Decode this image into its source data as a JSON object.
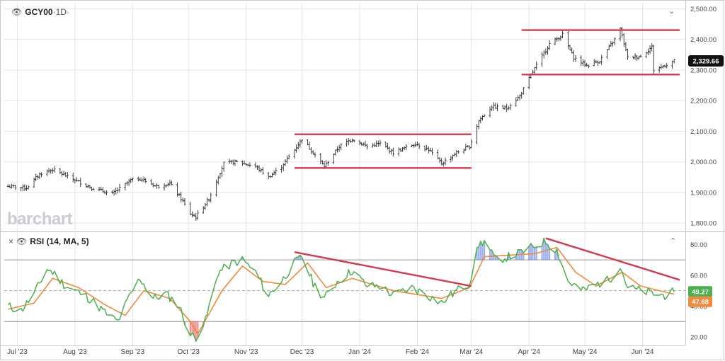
{
  "symbol": "GCY00",
  "interval": "1D",
  "watermark": "barchart",
  "rsi_label": "RSI (14, MA, 5)",
  "colors": {
    "price_bar": "#2b2b2b",
    "rsi_line": "#4caf50",
    "rsi_ma_line": "#f08a3c",
    "overbought_fill": "#4a6fdc",
    "oversold_fill": "#e04646",
    "trend_line": "#d23a4e",
    "last_price_badge": "#111111",
    "rsi_badge": "#4caf50",
    "ma_badge": "#f08a3c"
  },
  "chart_data": [
    {
      "type": "ohlc",
      "name": "price",
      "x_ticks": [
        "Jul '23",
        "Aug '23",
        "Sep '23",
        "Oct '23",
        "Nov '23",
        "Dec '23",
        "Jan '24",
        "Feb '24",
        "Mar '24",
        "Apr '24",
        "May '24",
        "Jun '24"
      ],
      "y_ticks": [
        "1,800.00",
        "1,900.00",
        "2,000.00",
        "2,100.00",
        "2,200.00",
        "2,300.00",
        "2,400.00",
        "2,500.00"
      ],
      "ylim": [
        1775,
        2510
      ],
      "last_price": "2,329.66",
      "close_points": [
        [
          "2023-06-26",
          1920
        ],
        [
          "2023-07-06",
          1915
        ],
        [
          "2023-07-13",
          1960
        ],
        [
          "2023-07-20",
          1975
        ],
        [
          "2023-07-27",
          1955
        ],
        [
          "2023-08-03",
          1935
        ],
        [
          "2023-08-10",
          1915
        ],
        [
          "2023-08-21",
          1895
        ],
        [
          "2023-08-31",
          1940
        ],
        [
          "2023-09-05",
          1945
        ],
        [
          "2023-09-14",
          1920
        ],
        [
          "2023-09-21",
          1930
        ],
        [
          "2023-09-27",
          1880
        ],
        [
          "2023-10-02",
          1830
        ],
        [
          "2023-10-05",
          1820
        ],
        [
          "2023-10-12",
          1880
        ],
        [
          "2023-10-20",
          1995
        ],
        [
          "2023-10-27",
          2000
        ],
        [
          "2023-11-06",
          1985
        ],
        [
          "2023-11-13",
          1950
        ],
        [
          "2023-11-20",
          1985
        ],
        [
          "2023-11-27",
          2040
        ],
        [
          "2023-12-01",
          2075
        ],
        [
          "2023-12-07",
          2030
        ],
        [
          "2023-12-13",
          1985
        ],
        [
          "2023-12-21",
          2050
        ],
        [
          "2023-12-28",
          2075
        ],
        [
          "2024-01-05",
          2050
        ],
        [
          "2024-01-12",
          2060
        ],
        [
          "2024-01-19",
          2030
        ],
        [
          "2024-01-31",
          2060
        ],
        [
          "2024-02-07",
          2040
        ],
        [
          "2024-02-14",
          1995
        ],
        [
          "2024-02-22",
          2030
        ],
        [
          "2024-02-29",
          2050
        ],
        [
          "2024-03-05",
          2135
        ],
        [
          "2024-03-12",
          2180
        ],
        [
          "2024-03-20",
          2175
        ],
        [
          "2024-03-27",
          2215
        ],
        [
          "2024-04-04",
          2305
        ],
        [
          "2024-04-12",
          2385
        ],
        [
          "2024-04-19",
          2415
        ],
        [
          "2024-04-25",
          2340
        ],
        [
          "2024-05-02",
          2315
        ],
        [
          "2024-05-09",
          2330
        ],
        [
          "2024-05-17",
          2400
        ],
        [
          "2024-05-20",
          2435
        ],
        [
          "2024-05-24",
          2340
        ],
        [
          "2024-05-31",
          2345
        ],
        [
          "2024-06-06",
          2375
        ],
        [
          "2024-06-07",
          2300
        ],
        [
          "2024-06-13",
          2315
        ],
        [
          "2024-06-18",
          2330
        ]
      ],
      "support_resistance": [
        {
          "from": "2023-11-27",
          "to": "2024-03-01",
          "y": 2090
        },
        {
          "from": "2023-11-27",
          "to": "2024-03-01",
          "y": 1980
        },
        {
          "from": "2024-03-28",
          "to": "2024-06-21",
          "y": 2430
        },
        {
          "from": "2024-03-28",
          "to": "2024-06-21",
          "y": 2285
        }
      ]
    },
    {
      "type": "line",
      "name": "RSI (14, MA, 5)",
      "y_ticks": [
        "20.00",
        "40.00",
        "60.00",
        "80.00"
      ],
      "ylim": [
        15,
        87
      ],
      "overbought": 70,
      "oversold": 30,
      "midline": 50,
      "last_rsi": "49.27",
      "last_ma": "47.68",
      "rsi_points": [
        [
          "2023-06-26",
          40
        ],
        [
          "2023-07-03",
          37
        ],
        [
          "2023-07-10",
          48
        ],
        [
          "2023-07-17",
          64
        ],
        [
          "2023-07-20",
          62
        ],
        [
          "2023-07-27",
          53
        ],
        [
          "2023-08-03",
          49
        ],
        [
          "2023-08-10",
          44
        ],
        [
          "2023-08-17",
          36
        ],
        [
          "2023-08-24",
          30
        ],
        [
          "2023-08-31",
          48
        ],
        [
          "2023-09-05",
          58
        ],
        [
          "2023-09-12",
          45
        ],
        [
          "2023-09-19",
          48
        ],
        [
          "2023-09-26",
          40
        ],
        [
          "2023-10-02",
          21
        ],
        [
          "2023-10-05",
          20
        ],
        [
          "2023-10-10",
          30
        ],
        [
          "2023-10-17",
          62
        ],
        [
          "2023-10-25",
          68
        ],
        [
          "2023-10-30",
          70
        ],
        [
          "2023-11-06",
          62
        ],
        [
          "2023-11-13",
          47
        ],
        [
          "2023-11-20",
          56
        ],
        [
          "2023-11-27",
          68
        ],
        [
          "2023-12-01",
          72
        ],
        [
          "2023-12-07",
          55
        ],
        [
          "2023-12-13",
          45
        ],
        [
          "2023-12-20",
          56
        ],
        [
          "2023-12-28",
          63
        ],
        [
          "2024-01-05",
          53
        ],
        [
          "2024-01-12",
          53
        ],
        [
          "2024-01-19",
          47
        ],
        [
          "2024-01-29",
          52
        ],
        [
          "2024-02-05",
          48
        ],
        [
          "2024-02-14",
          42
        ],
        [
          "2024-02-22",
          50
        ],
        [
          "2024-02-29",
          55
        ],
        [
          "2024-03-05",
          80
        ],
        [
          "2024-03-08",
          82
        ],
        [
          "2024-03-14",
          70
        ],
        [
          "2024-03-21",
          72
        ],
        [
          "2024-03-28",
          75
        ],
        [
          "2024-04-04",
          79
        ],
        [
          "2024-04-10",
          82
        ],
        [
          "2024-04-16",
          76
        ],
        [
          "2024-04-22",
          56
        ],
        [
          "2024-04-30",
          50
        ],
        [
          "2024-05-07",
          54
        ],
        [
          "2024-05-14",
          57
        ],
        [
          "2024-05-20",
          66
        ],
        [
          "2024-05-24",
          52
        ],
        [
          "2024-05-31",
          50
        ],
        [
          "2024-06-07",
          48
        ],
        [
          "2024-06-13",
          47
        ],
        [
          "2024-06-18",
          49.27
        ]
      ],
      "ma_points": [
        [
          "2023-06-26",
          38
        ],
        [
          "2023-07-10",
          42
        ],
        [
          "2023-07-20",
          58
        ],
        [
          "2023-08-03",
          52
        ],
        [
          "2023-08-17",
          41
        ],
        [
          "2023-08-28",
          34
        ],
        [
          "2023-09-07",
          50
        ],
        [
          "2023-09-21",
          45
        ],
        [
          "2023-10-02",
          30
        ],
        [
          "2023-10-06",
          22
        ],
        [
          "2023-10-19",
          50
        ],
        [
          "2023-10-30",
          66
        ],
        [
          "2023-11-10",
          56
        ],
        [
          "2023-11-22",
          54
        ],
        [
          "2023-12-04",
          68
        ],
        [
          "2023-12-14",
          52
        ],
        [
          "2023-12-28",
          58
        ],
        [
          "2024-01-19",
          50
        ],
        [
          "2024-02-14",
          45
        ],
        [
          "2024-02-29",
          52
        ],
        [
          "2024-03-08",
          72
        ],
        [
          "2024-03-21",
          73
        ],
        [
          "2024-04-04",
          74
        ],
        [
          "2024-04-16",
          78
        ],
        [
          "2024-04-26",
          62
        ],
        [
          "2024-05-07",
          53
        ],
        [
          "2024-05-21",
          62
        ],
        [
          "2024-05-31",
          53
        ],
        [
          "2024-06-18",
          47.68
        ]
      ],
      "trend_lines": [
        {
          "from": "2023-11-27",
          "y0": 75,
          "to": "2024-03-01",
          "y1": 53
        },
        {
          "from": "2024-04-10",
          "y0": 84,
          "to": "2024-06-21",
          "y1": 57
        }
      ]
    }
  ]
}
